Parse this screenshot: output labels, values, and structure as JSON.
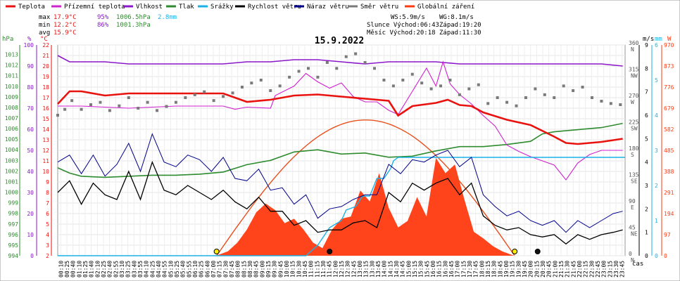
{
  "chart_data": {
    "type": "line",
    "title": "15.9.2022",
    "legend": [
      {
        "name": "Teplota",
        "color": "#e8120e"
      },
      {
        "name": "Přízemní teplota",
        "color": "#d020d0"
      },
      {
        "name": "Vlhkost",
        "color": "#8a17c9"
      },
      {
        "name": "Tlak",
        "color": "#2e8b2e"
      },
      {
        "name": "Srážky",
        "color": "#1ab2e6"
      },
      {
        "name": "Rychlost větru",
        "color": "#000000"
      },
      {
        "name": "Náraz větru",
        "color": "#00008b"
      },
      {
        "name": "Směr větru",
        "color": "#7a7a7a"
      },
      {
        "name": "Globální záření",
        "color": "#ff3a10"
      }
    ],
    "stats": {
      "max": {
        "label": "max",
        "temp": "17.9°C",
        "hum": "95%",
        "press": "1006.5hPa",
        "rain": "2.8mm"
      },
      "min": {
        "label": "min",
        "temp": "12.2°C",
        "hum": "86%",
        "press": "1001.3hPa"
      },
      "avg": {
        "label": "avg",
        "temp": "15.9°C"
      }
    },
    "info": {
      "ws": "WS:5.9m/s",
      "wg": "WG:8.1m/s",
      "slunce": "Slunce Východ:06:43",
      "slunce_zapad": "Západ:19:20",
      "mesic": "Měsíc Východ:20:18",
      "mesic_zapad": "Západ:11:30"
    },
    "axes": {
      "hpa": {
        "label": "hPa",
        "ticks": [
          "994",
          "995",
          "996",
          "997",
          "998",
          "999",
          "1000",
          "1001",
          "1002",
          "1003",
          "1004",
          "1005",
          "1006",
          "1007",
          "1008",
          "1009",
          "1010",
          "1011",
          "1012",
          "1013"
        ],
        "range": [
          994,
          1013.9
        ]
      },
      "pct": {
        "label": "%",
        "ticks": [
          "0",
          "10",
          "20",
          "30",
          "40",
          "50",
          "60",
          "70",
          "80",
          "90",
          "100"
        ],
        "range": [
          0,
          100
        ]
      },
      "temp": {
        "label": "°C",
        "ticks": [
          "2",
          "3",
          "4",
          "5",
          "6",
          "7",
          "8",
          "9",
          "10",
          "11",
          "12",
          "13",
          "14",
          "15",
          "16",
          "17",
          "18",
          "19",
          "20",
          "21",
          "22"
        ],
        "range": [
          2,
          22
        ]
      },
      "wind": {
        "label": "m/s",
        "ticks": [
          "0",
          "1",
          "2",
          "3",
          "4",
          "5",
          "6",
          "7",
          "8",
          "9"
        ],
        "range": [
          0,
          9
        ]
      },
      "rain": {
        "label": "mm",
        "ticks": [
          "0",
          "1",
          "2",
          "3",
          "4",
          "5",
          "6"
        ],
        "range": [
          0,
          6
        ]
      },
      "rad": {
        "label": "W",
        "ticks": [
          "0",
          "97",
          "194",
          "291",
          "388",
          "485",
          "582",
          "679",
          "776",
          "873",
          "970"
        ],
        "range": [
          0,
          970
        ]
      },
      "dir": {
        "ticks": [
          "0",
          "45",
          "90",
          "135",
          "180",
          "225",
          "270",
          "315",
          "360"
        ],
        "dir_labels": [
          "N",
          "NE",
          "E",
          "SE",
          "S",
          "SW",
          "W",
          "NW",
          "N"
        ],
        "range": [
          0,
          360
        ]
      },
      "x_label": "čas",
      "x_ticks": [
        "00:10",
        "00:25",
        "00:40",
        "01:10",
        "01:25",
        "01:40",
        "02:10",
        "02:25",
        "02:40",
        "02:55",
        "03:10",
        "03:25",
        "03:40",
        "03:55",
        "04:10",
        "04:25",
        "04:40",
        "04:55",
        "05:10",
        "05:25",
        "05:40",
        "05:55",
        "06:10",
        "06:25",
        "06:40",
        "07:00",
        "07:15",
        "07:30",
        "07:45",
        "08:00",
        "08:15",
        "08:30",
        "08:45",
        "09:00",
        "09:15",
        "09:30",
        "09:45",
        "10:00",
        "10:15",
        "10:30",
        "10:45",
        "11:00",
        "11:15",
        "11:30",
        "11:45",
        "12:00",
        "12:15",
        "12:30",
        "12:45",
        "13:00",
        "13:15",
        "13:30",
        "13:45",
        "14:00",
        "14:15",
        "14:30",
        "14:45",
        "15:00",
        "15:15",
        "15:30",
        "15:45",
        "16:00",
        "16:15",
        "16:30",
        "16:45",
        "17:00",
        "17:15",
        "17:30",
        "17:45",
        "18:00",
        "18:15",
        "18:30",
        "18:45",
        "19:00",
        "19:15",
        "19:30",
        "19:45",
        "20:00",
        "20:15",
        "20:30",
        "20:45",
        "21:00",
        "21:15",
        "21:30",
        "21:45",
        "22:00",
        "22:15",
        "22:30",
        "22:45",
        "23:00",
        "23:15",
        "23:30",
        "23:45"
      ]
    },
    "series": [
      {
        "name": "Teplota",
        "unit": "°C",
        "x": [
          0,
          0.5,
          1,
          2,
          3,
          4,
          5,
          6,
          7,
          8,
          9,
          10,
          11,
          12,
          13,
          14,
          14.4,
          15,
          16,
          16.5,
          17,
          17.5,
          18,
          19,
          20,
          21,
          21.5,
          22,
          23,
          23.9
        ],
        "y": [
          16.4,
          17.6,
          17.6,
          17.2,
          17.4,
          17.4,
          17.4,
          17.4,
          17.4,
          16.6,
          16.8,
          17.2,
          17.3,
          17.1,
          16.9,
          16.7,
          15.3,
          16.2,
          16.5,
          16.8,
          16.3,
          16.2,
          15.6,
          14.9,
          14.4,
          13.3,
          12.7,
          12.6,
          12.8,
          13.1
        ]
      },
      {
        "name": "Přízemní teplota",
        "unit": "°C",
        "x": [
          0,
          0.5,
          1,
          2,
          3,
          4,
          5,
          6,
          7,
          7.5,
          8,
          9,
          9.2,
          10,
          10.5,
          11,
          11.5,
          12,
          12.5,
          13,
          13.5,
          14,
          14.4,
          15,
          15.6,
          16,
          16.3,
          16.6,
          17,
          17.5,
          18,
          18.5,
          19,
          19.5,
          20,
          21,
          21.5,
          22,
          22.5,
          23,
          23.9
        ],
        "y": [
          16.2,
          16.2,
          16.2,
          16.1,
          16.0,
          16.1,
          16.2,
          16.2,
          16.2,
          15.9,
          16.1,
          16.0,
          17.2,
          18.1,
          19.3,
          18.5,
          17.9,
          18.4,
          17.1,
          16.6,
          16.6,
          15.8,
          15.4,
          17.6,
          19.8,
          18.1,
          20.4,
          18.3,
          17.3,
          16.4,
          15.3,
          14.3,
          12.5,
          11.9,
          11.4,
          10.6,
          9.2,
          10.8,
          11.6,
          12.0,
          12.0
        ]
      },
      {
        "name": "Vlhkost",
        "unit": "%",
        "x": [
          0,
          0.5,
          2,
          3,
          4,
          5,
          6,
          7,
          8,
          9,
          10,
          11,
          12,
          13,
          14,
          15,
          16,
          17,
          18,
          19,
          20,
          21,
          22,
          23,
          23.9
        ],
        "y": [
          95,
          92,
          92,
          91,
          91,
          91,
          91,
          91,
          92,
          92,
          93,
          93,
          92,
          91,
          92,
          92,
          92,
          91,
          91,
          91,
          91,
          91,
          91,
          91,
          90
        ]
      },
      {
        "name": "Tlak",
        "unit": "hPa",
        "x": [
          0,
          0.5,
          1,
          2,
          3,
          4,
          5,
          6,
          7,
          8,
          9,
          10,
          11,
          12,
          13,
          14,
          15,
          16,
          17,
          18,
          19,
          20,
          20.5,
          21,
          22,
          23,
          23.9
        ],
        "y": [
          1002.3,
          1001.8,
          1001.5,
          1001.4,
          1001.5,
          1001.6,
          1001.6,
          1001.7,
          1001.9,
          1002.6,
          1003.0,
          1003.8,
          1004.0,
          1003.6,
          1003.7,
          1003.3,
          1003.4,
          1003.9,
          1004.3,
          1004.3,
          1004.5,
          1004.8,
          1005.5,
          1005.7,
          1005.9,
          1006.1,
          1006.5
        ]
      },
      {
        "name": "Srážky",
        "unit": "mm",
        "x": [
          0,
          10.5,
          11,
          11.5,
          12,
          12.2,
          12.6,
          12.9,
          13.2,
          13.5,
          13.8,
          14.1,
          14.2,
          14.4,
          24
        ],
        "y": [
          0,
          0,
          0.3,
          0.8,
          1.0,
          1.3,
          1.4,
          1.7,
          1.7,
          2.2,
          2.2,
          2.5,
          2.7,
          2.8,
          2.8
        ]
      },
      {
        "name": "Rychlost větru",
        "unit": "m/s",
        "x": [
          0,
          0.5,
          1,
          1.5,
          2,
          2.5,
          3,
          3.5,
          4,
          4.5,
          5,
          5.5,
          6,
          6.5,
          7,
          7.5,
          8,
          8.5,
          9,
          9.5,
          10,
          10.5,
          11,
          11.5,
          12,
          12.5,
          13,
          13.5,
          14,
          14.5,
          15,
          15.5,
          16,
          16.5,
          17,
          17.5,
          18,
          18.5,
          19,
          19.5,
          20,
          20.5,
          21,
          21.5,
          22,
          22.5,
          23,
          23.5,
          23.9
        ],
        "y": [
          2.7,
          3.2,
          2.2,
          3.1,
          2.6,
          2.4,
          3.6,
          2.4,
          4.0,
          2.8,
          2.6,
          3.0,
          2.7,
          2.4,
          2.8,
          2.3,
          2.0,
          2.5,
          1.9,
          1.9,
          1.3,
          1.5,
          1.0,
          1.1,
          1.1,
          1.4,
          1.5,
          1.2,
          2.7,
          2.3,
          3.1,
          2.8,
          3.1,
          3.3,
          2.6,
          3.1,
          1.7,
          1.3,
          1.1,
          1.2,
          0.9,
          0.8,
          0.9,
          0.5,
          0.9,
          0.7,
          0.9,
          1.0,
          1.1
        ]
      },
      {
        "name": "Náraz větru",
        "unit": "m/s",
        "x": [
          0,
          0.5,
          1,
          1.5,
          2,
          2.5,
          3,
          3.5,
          4,
          4.5,
          5,
          5.5,
          6,
          6.5,
          7,
          7.5,
          8,
          8.5,
          9,
          9.5,
          10,
          10.5,
          11,
          11.5,
          12,
          12.5,
          13,
          13.5,
          14,
          14.5,
          15,
          15.5,
          16,
          16.5,
          17,
          17.5,
          18,
          18.5,
          19,
          19.5,
          20,
          20.5,
          21,
          21.5,
          22,
          22.5,
          23,
          23.5,
          23.9
        ],
        "y": [
          4.0,
          4.3,
          3.5,
          4.3,
          3.4,
          3.9,
          4.8,
          3.6,
          5.2,
          4.0,
          3.8,
          4.3,
          4.1,
          3.6,
          4.2,
          3.3,
          3.2,
          3.7,
          2.8,
          2.9,
          2.2,
          2.6,
          1.6,
          2.0,
          2.1,
          2.4,
          2.6,
          2.6,
          3.9,
          3.5,
          4.1,
          4.0,
          4.3,
          4.5,
          3.8,
          4.2,
          2.6,
          2.1,
          1.7,
          1.9,
          1.5,
          1.3,
          1.5,
          1.0,
          1.5,
          1.2,
          1.5,
          1.8,
          1.9
        ]
      },
      {
        "name": "Směr větru",
        "unit": "°",
        "x": [
          0,
          0.3,
          0.6,
          1,
          1.4,
          1.8,
          2.2,
          2.6,
          3,
          3.4,
          3.8,
          4.2,
          4.6,
          5,
          5.4,
          5.8,
          6.2,
          6.6,
          7,
          7.4,
          7.8,
          8.2,
          8.6,
          9,
          9.4,
          9.8,
          10.2,
          10.6,
          11,
          11.4,
          11.8,
          12.2,
          12.6,
          13,
          13.4,
          13.8,
          14.2,
          14.6,
          15,
          15.4,
          15.8,
          16.2,
          16.6,
          17,
          17.4,
          17.8,
          18.2,
          18.6,
          19,
          19.4,
          19.8,
          20.2,
          20.6,
          21,
          21.4,
          21.8,
          22.2,
          22.6,
          23,
          23.4,
          23.8
        ],
        "y": [
          240,
          250,
          265,
          250,
          258,
          262,
          248,
          256,
          270,
          252,
          262,
          248,
          255,
          262,
          270,
          275,
          280,
          265,
          272,
          278,
          288,
          295,
          300,
          282,
          290,
          305,
          315,
          320,
          305,
          330,
          320,
          340,
          345,
          330,
          320,
          300,
          290,
          300,
          310,
          295,
          285,
          290,
          300,
          275,
          285,
          292,
          260,
          270,
          262,
          256,
          270,
          285,
          275,
          270,
          290,
          282,
          288,
          270,
          264,
          260,
          258
        ]
      },
      {
        "name": "Globální záření",
        "unit": "W",
        "x": [
          0,
          6.7,
          7.2,
          7.6,
          8,
          8.4,
          8.8,
          9.2,
          9.6,
          10,
          10.4,
          10.8,
          11.2,
          11.6,
          12,
          12.4,
          12.8,
          13.2,
          13.6,
          14,
          14.4,
          14.8,
          15.2,
          15.6,
          16,
          16.4,
          16.8,
          17.2,
          17.6,
          18,
          18.4,
          18.8,
          19.3,
          24
        ],
        "y": [
          0,
          0,
          20,
          60,
          120,
          200,
          240,
          210,
          150,
          170,
          120,
          60,
          35,
          120,
          170,
          180,
          300,
          250,
          380,
          220,
          130,
          160,
          270,
          180,
          450,
          380,
          420,
          260,
          110,
          80,
          45,
          20,
          0,
          0
        ]
      }
    ],
    "grid": true
  }
}
